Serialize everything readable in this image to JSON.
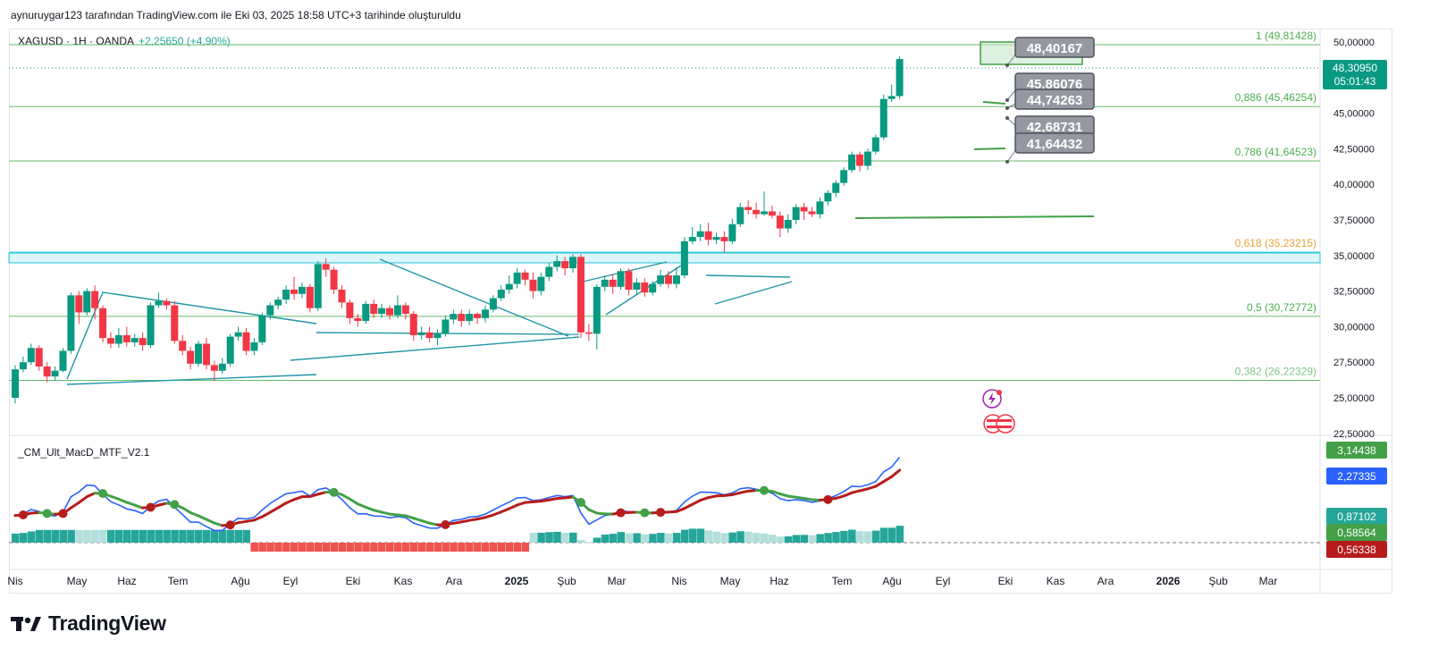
{
  "header": {
    "attribution": "aynuruygar123 tarafından TradingView.com ile Eki 03, 2025 18:58 UTC+3 tarihinde oluşturuldu"
  },
  "symbol": {
    "name": "XAGUSD · 1H · OANDA",
    "change": "+2,25650 (+4,90%)"
  },
  "indicator": {
    "name": "_CM_Ult_MacD_MTF_V2.1"
  },
  "footer": {
    "brand": "TradingView"
  },
  "colors": {
    "up": "#26a69a",
    "upFill": "#089981",
    "down": "#f23645",
    "fib": "#4caf50",
    "trend": "#2196a6",
    "macd": "#2962ff",
    "signal": "#43a047",
    "signalDown": "#b71c1c"
  },
  "chart_data": {
    "type": "candlestick",
    "price_axis": {
      "ticks": [
        "50,00000",
        "47,50000",
        "45,00000",
        "42,50000",
        "40,00000",
        "37,50000",
        "35,00000",
        "32,50000",
        "30,00000",
        "27,50000",
        "25,00000",
        "22,50000"
      ],
      "ylim": [
        22.5,
        51
      ]
    },
    "time_axis": [
      "Nis",
      "May",
      "Haz",
      "Tem",
      "Ağu",
      "Eyl",
      "Eki",
      "Kas",
      "Ara",
      "2025",
      "Şub",
      "Mar",
      "Nis",
      "May",
      "Haz",
      "Tem",
      "Ağu",
      "Eyl",
      "Eki",
      "Kas",
      "Ara",
      "2026",
      "Şub",
      "Mar"
    ],
    "fib_levels": [
      {
        "label": "1 (49,81428)",
        "value": 49.81428
      },
      {
        "label": "0,886 (45,46254)",
        "value": 45.46254
      },
      {
        "label": "0,786 (41,64523)",
        "value": 41.64523
      },
      {
        "label": "0,618 (35,23215)",
        "value": 35.23215
      },
      {
        "label": "0,5 (30,72772)",
        "value": 30.72772
      },
      {
        "label": "0,382 (26,22329)",
        "value": 26.22329
      }
    ],
    "current_price": {
      "value": "48,30950",
      "countdown": "05:01:43"
    },
    "price_labels": [
      "48,40167",
      "45,86076",
      "44,74263",
      "42,68731",
      "41,64432"
    ],
    "candles": [
      [
        25.0,
        27.0,
        24.6,
        27.3
      ],
      [
        27.0,
        27.5,
        26.8,
        27.9
      ],
      [
        27.5,
        28.5,
        27.3,
        28.8
      ],
      [
        28.5,
        27.2,
        26.9,
        28.7
      ],
      [
        27.2,
        26.5,
        26.1,
        27.5
      ],
      [
        26.5,
        26.9,
        26.2,
        27.2
      ],
      [
        26.9,
        28.3,
        26.8,
        28.5
      ],
      [
        28.3,
        32.2,
        28.1,
        32.4
      ],
      [
        32.2,
        31.0,
        30.2,
        32.5
      ],
      [
        31.0,
        32.5,
        30.8,
        32.7
      ],
      [
        32.5,
        31.3,
        30.5,
        32.9
      ],
      [
        31.3,
        29.2,
        28.9,
        31.5
      ],
      [
        29.2,
        28.8,
        28.5,
        29.6
      ],
      [
        28.8,
        29.4,
        28.5,
        29.9
      ],
      [
        29.4,
        28.9,
        28.6,
        30.0
      ],
      [
        28.9,
        29.2,
        28.6,
        29.5
      ],
      [
        29.2,
        28.7,
        28.3,
        29.6
      ],
      [
        28.7,
        31.5,
        28.5,
        31.7
      ],
      [
        31.5,
        31.8,
        31.3,
        32.4
      ],
      [
        31.8,
        31.5,
        31.2,
        32.0
      ],
      [
        31.5,
        29.0,
        28.8,
        31.8
      ],
      [
        29.0,
        28.3,
        28.0,
        29.4
      ],
      [
        28.3,
        27.4,
        27.0,
        28.6
      ],
      [
        27.4,
        28.8,
        27.2,
        29.0
      ],
      [
        28.8,
        27.3,
        27.0,
        29.2
      ],
      [
        27.3,
        26.9,
        26.2,
        27.6
      ],
      [
        26.9,
        27.4,
        26.7,
        27.8
      ],
      [
        27.4,
        29.3,
        27.2,
        29.5
      ],
      [
        29.3,
        29.6,
        29.0,
        30.0
      ],
      [
        29.6,
        28.3,
        28.0,
        29.9
      ],
      [
        28.3,
        28.9,
        28.0,
        29.2
      ],
      [
        28.9,
        30.8,
        28.7,
        31.0
      ],
      [
        30.8,
        31.5,
        30.5,
        31.7
      ],
      [
        31.5,
        31.9,
        31.2,
        32.1
      ],
      [
        31.9,
        32.6,
        31.6,
        32.9
      ],
      [
        32.6,
        32.3,
        31.9,
        33.5
      ],
      [
        32.3,
        32.8,
        32.0,
        33.1
      ],
      [
        32.8,
        31.3,
        31.0,
        33.0
      ],
      [
        31.3,
        34.4,
        31.1,
        34.6
      ],
      [
        34.4,
        34.0,
        33.5,
        34.8
      ],
      [
        34.0,
        32.6,
        32.3,
        34.2
      ],
      [
        32.6,
        31.7,
        31.3,
        32.9
      ],
      [
        31.7,
        30.6,
        30.2,
        31.9
      ],
      [
        30.6,
        30.4,
        30.0,
        30.9
      ],
      [
        30.4,
        31.6,
        30.2,
        31.8
      ],
      [
        31.6,
        30.9,
        30.6,
        31.9
      ],
      [
        30.9,
        31.3,
        30.6,
        31.6
      ],
      [
        31.3,
        30.8,
        30.5,
        31.5
      ],
      [
        30.8,
        31.5,
        30.6,
        32.2
      ],
      [
        31.5,
        30.9,
        30.5,
        31.7
      ],
      [
        30.9,
        29.4,
        29.0,
        31.1
      ],
      [
        29.4,
        29.6,
        29.1,
        30.0
      ],
      [
        29.6,
        29.2,
        28.9,
        30.0
      ],
      [
        29.2,
        29.5,
        28.7,
        29.8
      ],
      [
        29.5,
        30.5,
        29.3,
        30.8
      ],
      [
        30.5,
        30.9,
        30.2,
        31.2
      ],
      [
        30.9,
        30.4,
        30.0,
        31.2
      ],
      [
        30.4,
        30.9,
        30.1,
        31.2
      ],
      [
        30.9,
        30.6,
        30.2,
        31.0
      ],
      [
        30.6,
        31.2,
        30.3,
        31.5
      ],
      [
        31.2,
        32.0,
        31.0,
        32.2
      ],
      [
        32.0,
        32.6,
        31.8,
        32.9
      ],
      [
        32.6,
        33.0,
        32.3,
        33.6
      ],
      [
        33.0,
        33.8,
        32.7,
        34.1
      ],
      [
        33.8,
        33.3,
        32.9,
        34.0
      ],
      [
        33.3,
        32.5,
        32.0,
        33.8
      ],
      [
        32.5,
        33.5,
        32.2,
        33.8
      ],
      [
        33.5,
        34.2,
        33.2,
        34.5
      ],
      [
        34.2,
        34.6,
        33.9,
        35.0
      ],
      [
        34.6,
        34.1,
        33.6,
        34.9
      ],
      [
        34.1,
        34.9,
        33.8,
        35.1
      ],
      [
        34.9,
        29.6,
        29.2,
        35.1
      ],
      [
        29.6,
        29.5,
        29.0,
        30.2
      ],
      [
        29.5,
        32.8,
        28.4,
        33.0
      ],
      [
        32.8,
        33.3,
        32.5,
        33.6
      ],
      [
        33.3,
        32.8,
        32.3,
        33.7
      ],
      [
        32.8,
        33.9,
        32.6,
        34.1
      ],
      [
        33.9,
        32.6,
        32.2,
        34.1
      ],
      [
        32.6,
        33.1,
        32.3,
        33.4
      ],
      [
        33.1,
        32.4,
        32.1,
        33.4
      ],
      [
        32.4,
        33.0,
        32.2,
        33.2
      ],
      [
        33.0,
        33.6,
        32.8,
        34.0
      ],
      [
        33.6,
        33.0,
        32.7,
        33.9
      ],
      [
        33.0,
        33.6,
        32.7,
        34.2
      ],
      [
        33.6,
        36.0,
        33.4,
        36.3
      ],
      [
        36.0,
        36.3,
        35.8,
        37.0
      ],
      [
        36.3,
        36.7,
        36.0,
        37.2
      ],
      [
        36.7,
        36.1,
        35.7,
        37.3
      ],
      [
        36.1,
        36.3,
        35.8,
        36.6
      ],
      [
        36.3,
        36.0,
        35.2,
        36.7
      ],
      [
        36.0,
        37.2,
        35.8,
        37.6
      ],
      [
        37.2,
        38.4,
        37.0,
        38.7
      ],
      [
        38.4,
        38.2,
        37.9,
        38.9
      ],
      [
        38.2,
        37.9,
        37.6,
        38.7
      ],
      [
        37.9,
        38.1,
        37.8,
        39.5
      ],
      [
        38.1,
        37.8,
        37.6,
        38.5
      ],
      [
        37.8,
        36.9,
        36.3,
        38.1
      ],
      [
        36.9,
        37.5,
        36.6,
        37.9
      ],
      [
        37.5,
        38.4,
        37.2,
        38.6
      ],
      [
        38.4,
        38.1,
        37.5,
        38.7
      ],
      [
        38.1,
        37.9,
        37.7,
        38.4
      ],
      [
        37.9,
        38.8,
        37.6,
        39.1
      ],
      [
        38.8,
        39.4,
        38.5,
        39.6
      ],
      [
        39.4,
        40.1,
        39.1,
        40.3
      ],
      [
        40.1,
        41.0,
        39.9,
        41.2
      ],
      [
        41.0,
        42.1,
        40.8,
        42.3
      ],
      [
        42.1,
        41.3,
        40.9,
        42.3
      ],
      [
        41.3,
        42.3,
        41.0,
        42.5
      ],
      [
        42.3,
        43.3,
        42.1,
        43.5
      ],
      [
        43.3,
        46.0,
        43.1,
        46.3
      ],
      [
        46.0,
        46.2,
        45.8,
        47.0
      ],
      [
        46.2,
        48.8,
        46.0,
        49.0
      ]
    ],
    "macd": {
      "signal_last": "3,14438",
      "macd_last": "2,27335",
      "hist_last": "0,87102",
      "value4": "0,58564",
      "value5": "0,56338"
    }
  }
}
